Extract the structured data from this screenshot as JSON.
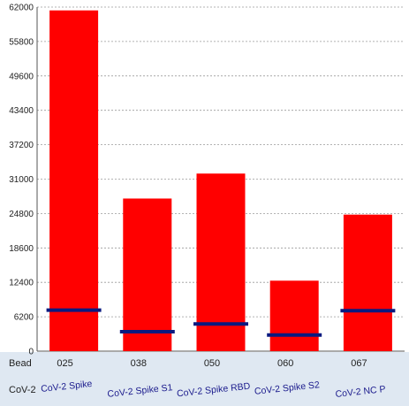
{
  "chart_data": {
    "type": "bar",
    "row_labels": {
      "bead": "Bead",
      "antigen": "CoV-2"
    },
    "categories": [
      "025",
      "038",
      "050",
      "060",
      "067"
    ],
    "antigens": [
      "CoV-2 Spike",
      "CoV-2 Spike S1",
      "CoV-2 Spike RBD",
      "CoV-2 Spike S2",
      "CoV-2 NC P"
    ],
    "values": [
      61400,
      27500,
      32000,
      12700,
      24600
    ],
    "threshold_values": [
      7400,
      3500,
      4900,
      2900,
      7300
    ],
    "y_ticks": [
      "0",
      "6200",
      "12400",
      "18600",
      "24800",
      "31000",
      "37200",
      "43400",
      "49600",
      "55800",
      "62000"
    ],
    "ylim": [
      0,
      62000
    ],
    "grid": true,
    "colors": {
      "bar": "#ff0000",
      "threshold": "#0a1a80",
      "grid": "#9a9a9a",
      "footer_bg": "#dfe8f2"
    }
  }
}
